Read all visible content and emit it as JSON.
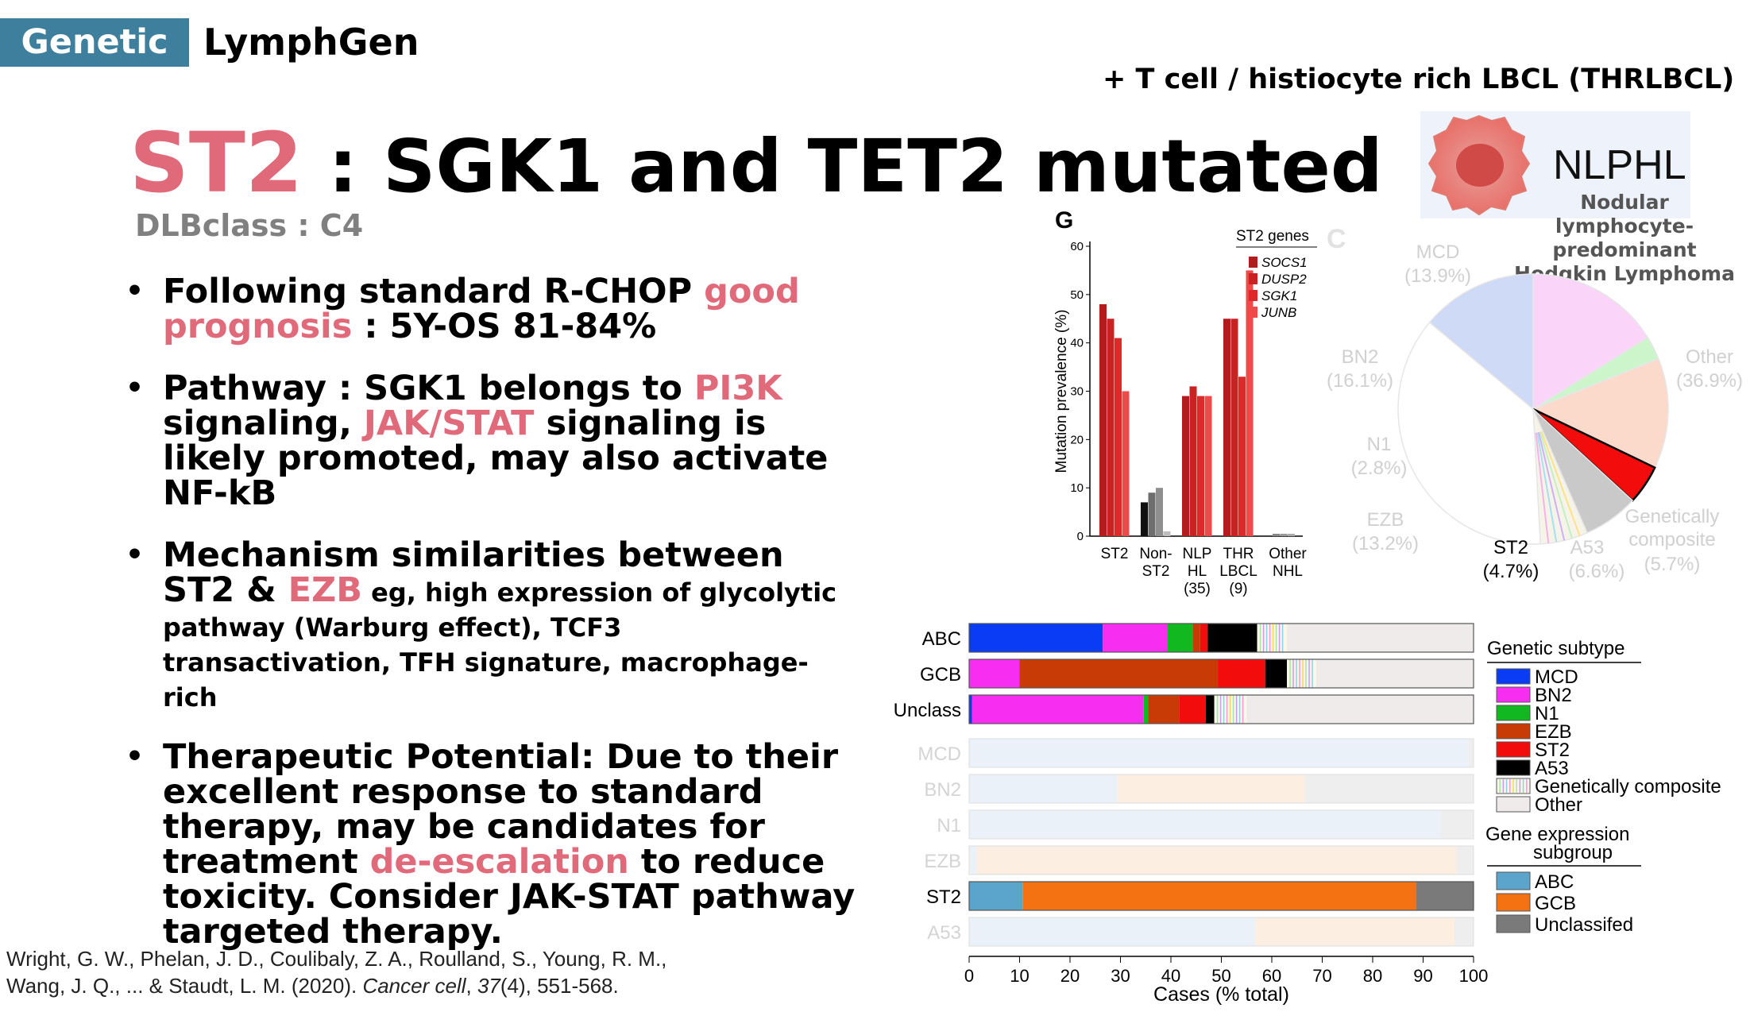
{
  "header": {
    "tag": "Genetic",
    "section": "LymphGen",
    "top_right": "+ T cell / histiocyte rich LBCL (THRLBCL)"
  },
  "title": {
    "highlight": "ST2",
    "rest": " : SGK1 and TET2 mutated",
    "subtitle": "DLBclass : C4"
  },
  "bullets": [
    {
      "a": "Following standard R-CHOP ",
      "b": "good prognosis",
      "c": " : 5Y-OS 81-84%"
    },
    {
      "a": "Pathway : SGK1 belongs to ",
      "b": "PI3K",
      "c": " signaling, ",
      "d": "JAK/STAT",
      "e": " signaling is likely promoted, may also activate NF-kB"
    },
    {
      "a": "Mechanism similarities between ST2 & ",
      "b": "EZB",
      "c": " eg, high expression of glycolytic pathway (Warburg effect), TCF3 transactivation, TFH signature, macrophage-rich"
    },
    {
      "a": "Therapeutic Potential: Due to their excellent response to standard therapy, may be candidates for treatment ",
      "b": "de-escalation",
      "c": " to reduce toxicity. Consider JAK-STAT pathway targeted therapy."
    }
  ],
  "citation": {
    "line1": "Wright, G. W., Phelan, J. D., Coulibaly, Z. A., Roulland, S., Young, R. M.,",
    "line2a": "Wang, J. Q., ... & Staudt, L. M. (2020). ",
    "journal": "Cancer cell",
    "line2b": ", ",
    "volume": "37",
    "line2c": "(4), 551-568."
  },
  "nlphl": {
    "label": "NLPHL",
    "desc1": "Nodular lymphocyte-",
    "desc2": "predominant",
    "desc3": "Hodgkin Lymphoma",
    "icon": "cell-icon"
  },
  "colors": {
    "pink": "#e0697a",
    "tag": "#3d7f9c",
    "MCD": "#0a3cf5",
    "BN2": "#f72ef2",
    "N1": "#12b81f",
    "EZB": "#c83a06",
    "ST2": "#f20c0c",
    "A53": "#000000",
    "Other": "#efebeb",
    "ABC": "#5ba5cc",
    "GCB": "#f57212",
    "Unclassified": "#7a7a7a"
  },
  "chart_data": [
    {
      "type": "bar",
      "panel_label": "G",
      "ylabel": "Mutation prevalence (%)",
      "ylim": [
        0,
        60
      ],
      "yticks": [
        "0",
        "10",
        "20",
        "30",
        "40",
        "50",
        "60"
      ],
      "legend_title": "ST2 genes",
      "categories": [
        {
          "l1": "ST2",
          "l2": "",
          "l3": ""
        },
        {
          "l1": "Non-",
          "l2": "ST2",
          "l3": ""
        },
        {
          "l1": "NLP",
          "l2": "HL",
          "l3": "(35)"
        },
        {
          "l1": "THR",
          "l2": "LBCL",
          "l3": "(9)"
        },
        {
          "l1": "Other",
          "l2": "NHL",
          "l3": ""
        }
      ],
      "series": [
        {
          "name": "SOCS1",
          "values": [
            48,
            7,
            29,
            45,
            0.5
          ]
        },
        {
          "name": "DUSP2",
          "values": [
            45,
            9,
            31,
            45,
            0.5
          ]
        },
        {
          "name": "SGK1",
          "values": [
            41,
            10,
            29,
            33,
            0.5
          ]
        },
        {
          "name": "JUNB",
          "values": [
            30,
            1,
            29,
            55,
            0
          ]
        }
      ],
      "series_colors_st2": [
        "#b31c1c",
        "#c92222",
        "#dc2a2a",
        "#ef4a4a"
      ],
      "series_colors_nonst2": [
        "#111111",
        "#6e6e6e",
        "#8f8f8f",
        "#bdbdbd"
      ],
      "series_colors_other": [
        "#888888",
        "#999999",
        "#aaaaaa",
        "#cccccc"
      ]
    },
    {
      "type": "pie",
      "panel_label": "C",
      "slices": [
        {
          "name": "MCD",
          "pct": "(13.9%)",
          "value": 13.9,
          "color": "#cfdaf7"
        },
        {
          "name": "BN2",
          "pct": "(16.1%)",
          "value": 16.1,
          "color": "#fbd4fa"
        },
        {
          "name": "N1",
          "pct": "(2.8%)",
          "value": 2.8,
          "color": "#ccf5cc"
        },
        {
          "name": "EZB",
          "pct": "(13.2%)",
          "value": 13.2,
          "color": "#fbdacb"
        },
        {
          "name": "ST2",
          "pct": "(4.7%)",
          "value": 4.7,
          "color": "#f20c0c"
        },
        {
          "name": "A53",
          "pct": "(6.6%)",
          "value": 6.6,
          "color": "#c9c9c9"
        },
        {
          "name": "Genetically composite",
          "pct": "(5.7%)",
          "value": 5.7,
          "color": "#f6f3e8"
        },
        {
          "name": "Other",
          "pct": "(36.9%)",
          "value": 36.9,
          "color": "#ffffff"
        }
      ],
      "label_genetically": "Genetically",
      "label_composite": "composite"
    },
    {
      "type": "stacked-bar",
      "orientation": "horizontal",
      "xlabel": "Cases (% total)",
      "xlim": [
        0,
        100
      ],
      "xticks": [
        "0",
        "10",
        "20",
        "30",
        "40",
        "50",
        "60",
        "70",
        "80",
        "90",
        "100"
      ],
      "rows": [
        {
          "label": "ABC",
          "faded": false,
          "segments": [
            {
              "name": "MCD",
              "value": 26.5
            },
            {
              "name": "BN2",
              "value": 12.8
            },
            {
              "name": "N1",
              "value": 5
            },
            {
              "name": "EZB",
              "value": 1.5
            },
            {
              "name": "ST2",
              "value": 1.5
            },
            {
              "name": "A53",
              "value": 9.8
            },
            {
              "name": "Genetically composite",
              "value": 5.9
            },
            {
              "name": "Other",
              "value": 37
            }
          ]
        },
        {
          "label": "GCB",
          "faded": false,
          "segments": [
            {
              "name": "MCD",
              "value": 0
            },
            {
              "name": "BN2",
              "value": 10
            },
            {
              "name": "N1",
              "value": 0
            },
            {
              "name": "EZB",
              "value": 39.3
            },
            {
              "name": "ST2",
              "value": 9.4
            },
            {
              "name": "A53",
              "value": 4.3
            },
            {
              "name": "Genetically composite",
              "value": 5.8
            },
            {
              "name": "Other",
              "value": 31.2
            }
          ]
        },
        {
          "label": "Unclass",
          "faded": false,
          "segments": [
            {
              "name": "MCD",
              "value": 0.6
            },
            {
              "name": "BN2",
              "value": 34
            },
            {
              "name": "N1",
              "value": 0.9
            },
            {
              "name": "EZB",
              "value": 6.1
            },
            {
              "name": "ST2",
              "value": 5.3
            },
            {
              "name": "A53",
              "value": 1.7
            },
            {
              "name": "Genetically composite",
              "value": 6.4
            },
            {
              "name": "Other",
              "value": 45
            }
          ]
        },
        {
          "label": "MCD",
          "faded": true,
          "segments": [
            {
              "name": "ABC",
              "value": 99
            },
            {
              "name": "GCB",
              "value": 0
            },
            {
              "name": "Unclassifed",
              "value": 1
            }
          ]
        },
        {
          "label": "BN2",
          "faded": true,
          "segments": [
            {
              "name": "ABC",
              "value": 29.4
            },
            {
              "name": "GCB",
              "value": 37.2
            },
            {
              "name": "Unclassifed",
              "value": 33.4
            }
          ]
        },
        {
          "label": "N1",
          "faded": true,
          "segments": [
            {
              "name": "ABC",
              "value": 93.5
            },
            {
              "name": "GCB",
              "value": 0
            },
            {
              "name": "Unclassifed",
              "value": 6.5
            }
          ]
        },
        {
          "label": "EZB",
          "faded": true,
          "segments": [
            {
              "name": "ABC",
              "value": 1.5
            },
            {
              "name": "GCB",
              "value": 95.1
            },
            {
              "name": "Unclassifed",
              "value": 3.4
            }
          ]
        },
        {
          "label": "ST2",
          "faded": false,
          "segments": [
            {
              "name": "ABC",
              "value": 10.6
            },
            {
              "name": "GCB",
              "value": 78
            },
            {
              "name": "Unclassifed",
              "value": 11.4
            }
          ]
        },
        {
          "label": "A53",
          "faded": true,
          "segments": [
            {
              "name": "ABC",
              "value": 56.7
            },
            {
              "name": "GCB",
              "value": 39.5
            },
            {
              "name": "Unclassifed",
              "value": 3.8
            }
          ]
        }
      ],
      "legend_genetic_title": "Genetic subtype",
      "legend_genetic": [
        {
          "name": "MCD",
          "color": "#0a3cf5"
        },
        {
          "name": "BN2",
          "color": "#f72ef2"
        },
        {
          "name": "N1",
          "color": "#12b81f"
        },
        {
          "name": "EZB",
          "color": "#c83a06"
        },
        {
          "name": "ST2",
          "color": "#f20c0c"
        },
        {
          "name": "A53",
          "color": "#000000"
        },
        {
          "name": "Genetically composite",
          "color": "stripes"
        },
        {
          "name": "Other",
          "color": "#efebeb"
        }
      ],
      "legend_expr_title1": "Gene expression",
      "legend_expr_title2": "subgroup",
      "legend_expr": [
        {
          "name": "ABC",
          "color": "#5ba5cc"
        },
        {
          "name": "GCB",
          "color": "#f57212"
        },
        {
          "name": "Unclassifed",
          "color": "#7a7a7a"
        }
      ]
    }
  ]
}
